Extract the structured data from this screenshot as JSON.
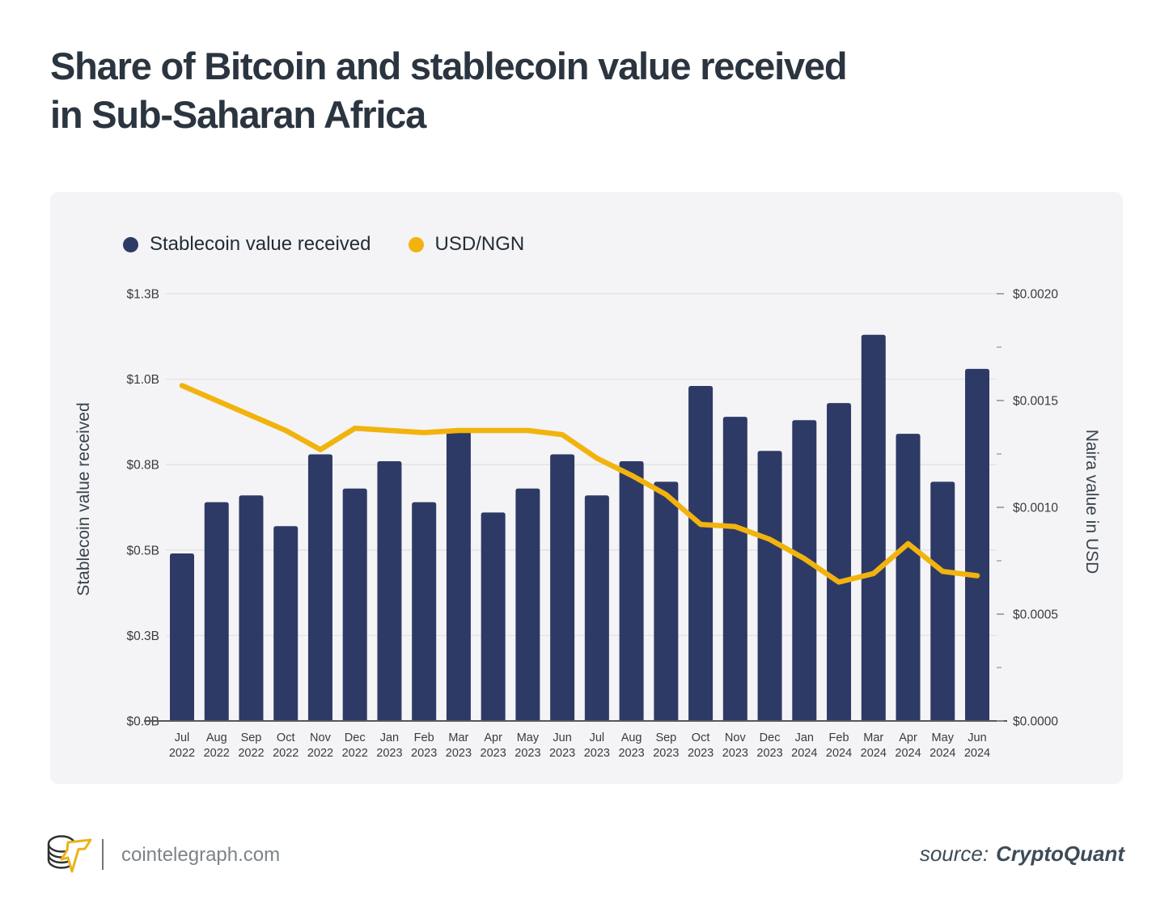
{
  "title": {
    "line1": "Share of Bitcoin and stablecoin value received",
    "line2": "in Sub-Saharan Africa"
  },
  "colors": {
    "bar": "#2e3a66",
    "line": "#f2b30e",
    "panel_bg": "#f4f4f6",
    "gridline": "#e2e2e6",
    "baseline": "#58585b",
    "tick_text": "#3b3b3d",
    "tick_mark": "#8f8f94",
    "title_text": "#2b3540",
    "legend_text": "#222d36",
    "axis_title_text": "#3a434b",
    "footer_text": "#7b8488",
    "source_text": "#3c4c59"
  },
  "chart_data": {
    "type": "bar",
    "title": "Share of Bitcoin and stablecoin value received in Sub-Saharan Africa",
    "grid": true,
    "legend_position": "top-left",
    "categories": [
      "Jul 2022",
      "Aug 2022",
      "Sep 2022",
      "Oct 2022",
      "Nov 2022",
      "Dec 2022",
      "Jan 2023",
      "Feb 2023",
      "Mar 2023",
      "Apr 2023",
      "May 2023",
      "Jun 2023",
      "Jul 2023",
      "Aug 2023",
      "Sep 2023",
      "Oct 2023",
      "Nov 2023",
      "Dec 2023",
      "Jan 2024",
      "Feb 2024",
      "Mar 2024",
      "Apr 2024",
      "May 2024",
      "Jun 2024"
    ],
    "series": [
      {
        "name": "Stablecoin value received",
        "type": "bar",
        "axis": "left",
        "color": "#2e3a66",
        "values_unit": "billion USD",
        "values": [
          0.49,
          0.64,
          0.66,
          0.57,
          0.78,
          0.68,
          0.76,
          0.64,
          0.85,
          0.61,
          0.68,
          0.78,
          0.66,
          0.76,
          0.7,
          0.98,
          0.89,
          0.79,
          0.88,
          0.93,
          1.13,
          0.84,
          0.7,
          1.03
        ]
      },
      {
        "name": "USD/NGN",
        "type": "line",
        "axis": "right",
        "color": "#f2b30e",
        "values_unit": "USD per NGN",
        "values": [
          0.00157,
          0.0015,
          0.00143,
          0.00136,
          0.00127,
          0.00137,
          0.00136,
          0.00135,
          0.00136,
          0.00136,
          0.00136,
          0.00134,
          0.00123,
          0.00115,
          0.00106,
          0.00092,
          0.00091,
          0.00085,
          0.00076,
          0.00065,
          0.00069,
          0.00083,
          0.0007,
          0.00068
        ]
      }
    ],
    "left_axis": {
      "label": "Stablecoin value received",
      "range": [
        0,
        1.25
      ],
      "tick_values": [
        1.25,
        1.0,
        0.75,
        0.5,
        0.25,
        0
      ],
      "tick_labels": [
        "$1.3B",
        "$1.0B",
        "$0.8B",
        "$0.5B",
        "$0.3B",
        "$0.0B"
      ]
    },
    "right_axis": {
      "label": "Naira value in USD",
      "range": [
        0,
        0.002
      ],
      "tick_values": [
        0.002,
        0.0015,
        0.001,
        0.0005,
        0
      ],
      "tick_labels": [
        "$0.0020",
        "$0.0015",
        "$0.0010",
        "$0.0005",
        "$0.0000"
      ],
      "minor_tick_values": [
        0.00175,
        0.00125,
        0.00075,
        0.00025
      ]
    }
  },
  "footer": {
    "site": "cointelegraph.com",
    "source_prefix": "source:",
    "source_name": "CryptoQuant"
  }
}
